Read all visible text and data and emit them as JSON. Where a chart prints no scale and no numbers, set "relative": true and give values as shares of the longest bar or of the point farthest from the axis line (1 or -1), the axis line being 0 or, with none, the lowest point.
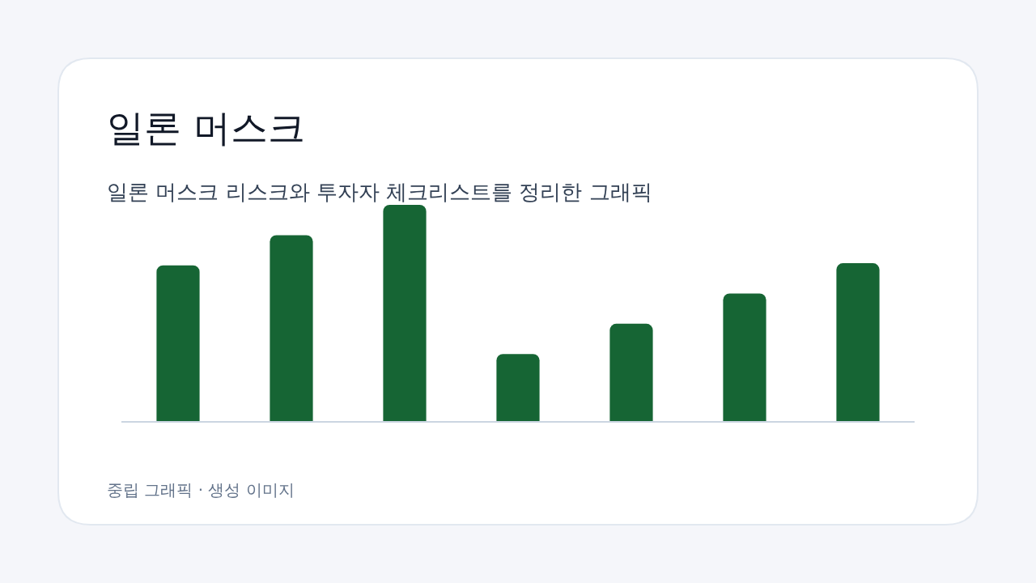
{
  "chart_data": {
    "type": "bar",
    "title": "일론 머스크",
    "subtitle": "일론 머스크 리스크와 투자자 체크리스트를 정리한 그래픽",
    "categories": [
      null,
      null,
      null,
      null,
      null,
      null,
      null
    ],
    "values": [
      0.72,
      0.86,
      1,
      0.31,
      0.45,
      0.59,
      0.73
    ],
    "color": "#166534",
    "relative": true,
    "annotations": [
      "중립 그래픽 · 생성 이미지"
    ]
  }
}
